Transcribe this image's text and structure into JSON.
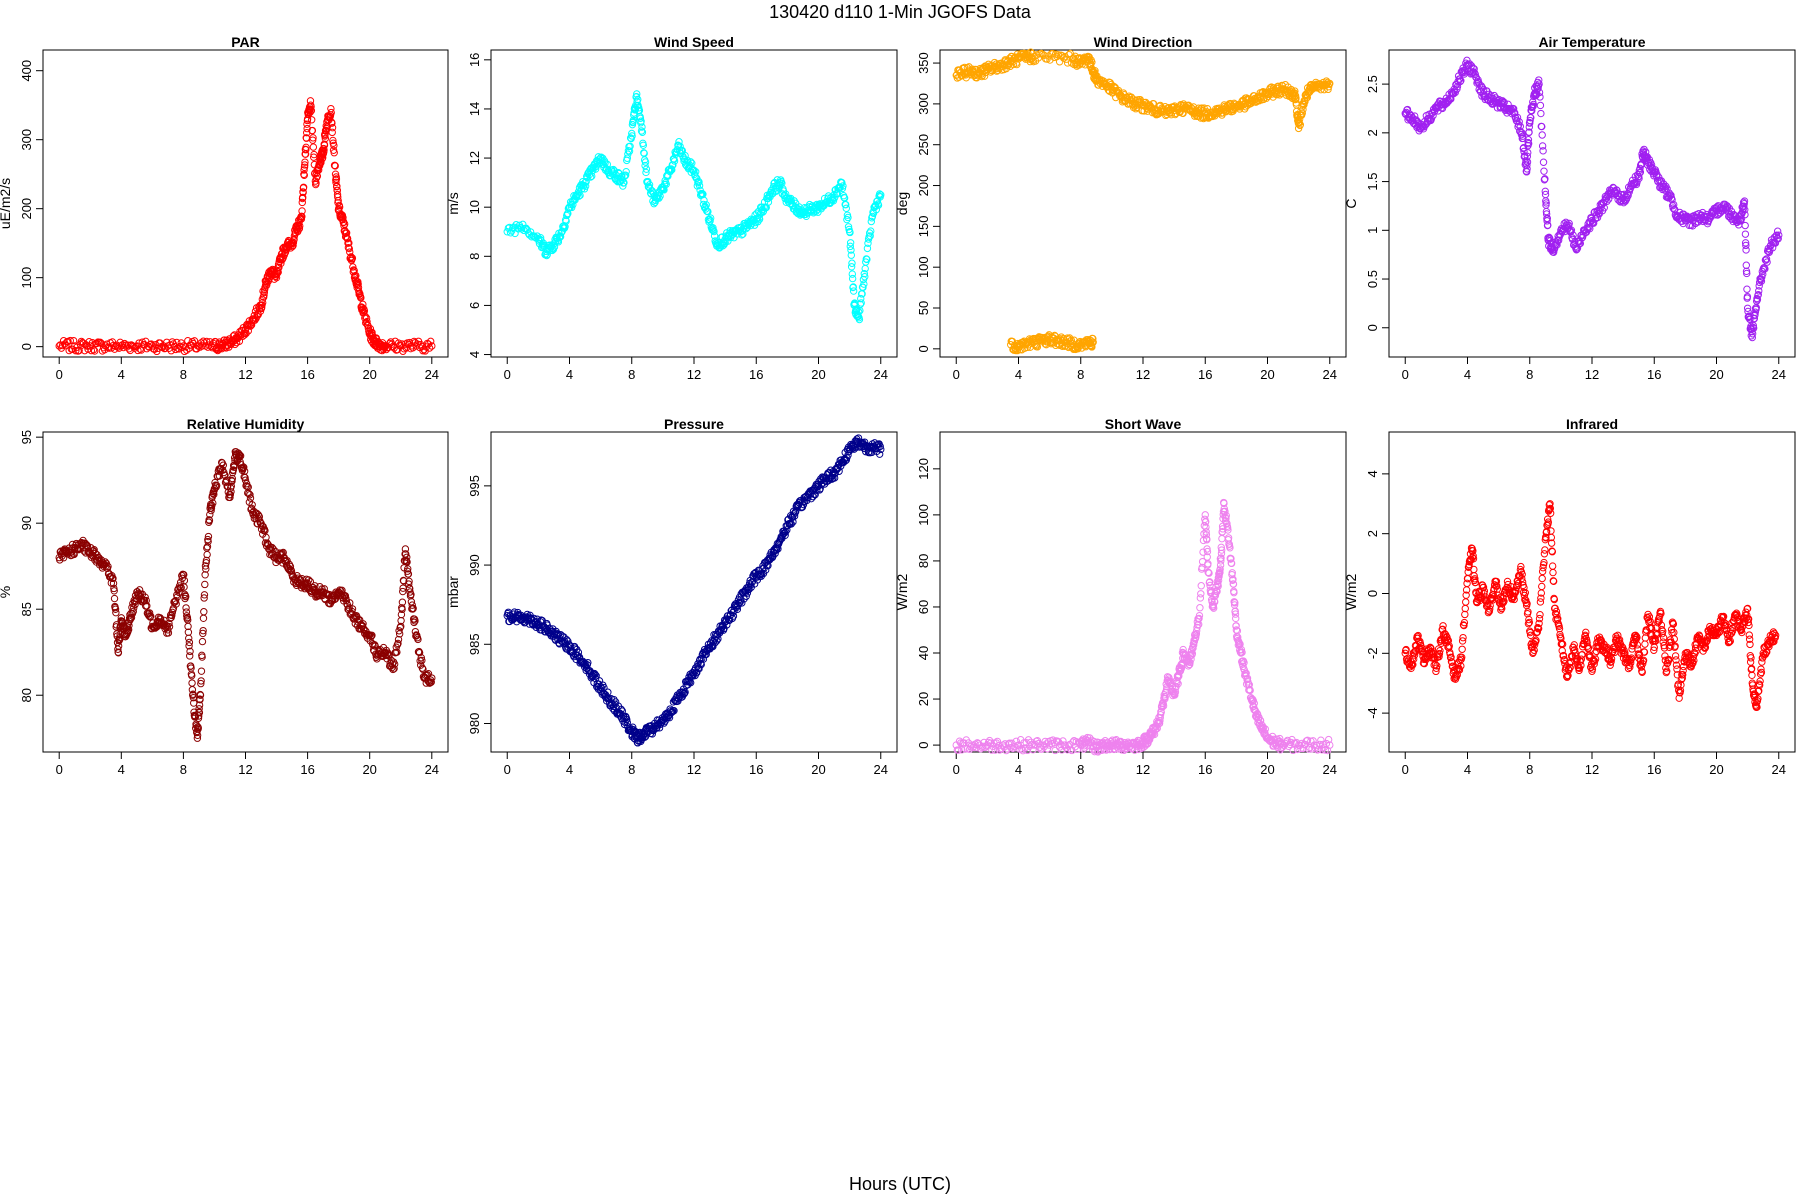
{
  "title": "130420   d110   1-Min  JGOFS Data",
  "xlabel": "Hours (UTC)",
  "chart_data": [
    {
      "type": "scatter",
      "title": "PAR",
      "xlabel": "",
      "ylabel": "uE/m2/s",
      "color": "#ff0000",
      "xlim": [
        0,
        24
      ],
      "ylim": [
        -15,
        430
      ],
      "xticks": [
        0,
        4,
        8,
        12,
        16,
        20,
        24
      ],
      "yticks": [
        0,
        100,
        200,
        300,
        400
      ],
      "x": [
        0,
        1,
        2,
        3,
        4,
        5,
        6,
        7,
        8,
        9,
        10,
        10.5,
        11,
        11.5,
        12,
        12.5,
        13,
        13.3,
        13.6,
        14,
        14.3,
        14.6,
        15,
        15.3,
        15.6,
        15.8,
        16,
        16.2,
        16.5,
        16.8,
        17,
        17.2,
        17.5,
        17.8,
        18,
        18.3,
        18.6,
        19,
        19.3,
        19.6,
        20,
        20.3,
        20.6,
        21,
        22,
        23,
        24
      ],
      "y": [
        1,
        1,
        1,
        1,
        1,
        1,
        1,
        1,
        1,
        1,
        1,
        2,
        6,
        12,
        25,
        40,
        60,
        90,
        110,
        100,
        130,
        145,
        150,
        170,
        185,
        260,
        330,
        350,
        240,
        270,
        280,
        320,
        345,
        250,
        200,
        180,
        150,
        110,
        80,
        50,
        20,
        8,
        3,
        1,
        1,
        1,
        1
      ]
    },
    {
      "type": "scatter",
      "title": "Wind Speed",
      "xlabel": "",
      "ylabel": "m/s",
      "color": "#00ffff",
      "xlim": [
        0,
        24
      ],
      "ylim": [
        3.9,
        16.4
      ],
      "xticks": [
        0,
        4,
        8,
        12,
        16,
        20,
        24
      ],
      "yticks": [
        4,
        6,
        8,
        10,
        12,
        14,
        16
      ],
      "x": [
        0,
        1,
        2,
        2.5,
        3,
        3.5,
        4,
        4.5,
        5,
        5.5,
        6,
        6.5,
        7,
        7.5,
        8,
        8.3,
        8.6,
        9,
        9.5,
        10,
        10.5,
        11,
        11.5,
        12,
        12.5,
        13,
        13.5,
        14,
        14.5,
        15,
        15.5,
        16,
        16.5,
        17,
        17.5,
        18,
        18.5,
        19,
        19.5,
        20,
        20.5,
        21,
        21.5,
        22,
        22.3,
        22.6,
        23,
        23.5,
        24
      ],
      "y": [
        9,
        9.3,
        8.7,
        8.2,
        8.5,
        9,
        10,
        10.5,
        11,
        11.5,
        12,
        11.5,
        11.3,
        11,
        13,
        14.5,
        13.5,
        11,
        10.2,
        10.8,
        11.5,
        12.5,
        11.8,
        11.5,
        10.5,
        9.5,
        8.5,
        8.7,
        8.9,
        9,
        9.3,
        9.5,
        10,
        10.7,
        11,
        10.3,
        10,
        9.8,
        9.9,
        10,
        10.2,
        10.5,
        11,
        9,
        6,
        5.5,
        7.5,
        9.8,
        10.5
      ]
    },
    {
      "type": "scatter",
      "title": "Wind Direction",
      "xlabel": "",
      "ylabel": "deg",
      "color": "#ffa500",
      "xlim": [
        0,
        24
      ],
      "ylim": [
        -10,
        366
      ],
      "xticks": [
        0,
        4,
        8,
        12,
        16,
        20,
        24
      ],
      "yticks": [
        0,
        50,
        100,
        150,
        200,
        250,
        300,
        350
      ],
      "x": [
        0,
        0.5,
        1,
        1.5,
        2,
        2.5,
        3,
        3.5,
        4,
        4.5,
        5,
        6.3,
        7.5,
        8,
        8.5,
        8.8,
        9,
        9.5,
        10,
        10.5,
        11,
        11.5,
        12,
        12.5,
        13,
        13.5,
        14,
        14.5,
        15,
        15.5,
        16,
        16.5,
        17,
        17.5,
        18,
        18.5,
        19,
        19.5,
        20,
        20.5,
        21,
        21.5,
        21.8,
        22,
        22.3,
        22.6,
        23,
        23.5,
        24,
        3.5,
        4,
        4.5,
        5,
        5.5,
        6,
        6.5,
        7,
        7.5,
        8,
        8.5,
        8.8
      ],
      "y": [
        335,
        338,
        340,
        337,
        342,
        345,
        348,
        352,
        355,
        357,
        358,
        357,
        355,
        350,
        357,
        340,
        330,
        325,
        318,
        310,
        305,
        300,
        298,
        295,
        292,
        290,
        292,
        295,
        293,
        290,
        288,
        290,
        292,
        295,
        297,
        300,
        303,
        308,
        312,
        316,
        318,
        315,
        310,
        270,
        300,
        315,
        320,
        322,
        325,
        5,
        3,
        6,
        8,
        10,
        12,
        10,
        8,
        6,
        5,
        7,
        8
      ]
    },
    {
      "type": "scatter",
      "title": "Air Temperature",
      "xlabel": "",
      "ylabel": "C",
      "color": "#a020f0",
      "xlim": [
        0,
        24
      ],
      "ylim": [
        -0.3,
        2.85
      ],
      "xticks": [
        0,
        4,
        8,
        12,
        16,
        20,
        24
      ],
      "yticks": [
        0,
        0.5,
        1,
        1.5,
        2,
        2.5
      ],
      "x": [
        0,
        0.5,
        1,
        1.5,
        2,
        2.5,
        3,
        3.5,
        4,
        4.5,
        5,
        5.5,
        6,
        6.5,
        7,
        7.5,
        7.8,
        8,
        8.3,
        8.6,
        9,
        9.2,
        9.5,
        10,
        10.5,
        11,
        11.5,
        12,
        12.5,
        13,
        13.5,
        14,
        14.5,
        15,
        15.3,
        15.6,
        16,
        16.5,
        17,
        17.5,
        18,
        18.5,
        19,
        19.5,
        20,
        20.5,
        21,
        21.5,
        21.8,
        22,
        22.3,
        22.6,
        23,
        23.5,
        24
      ],
      "y": [
        2.2,
        2.15,
        2.05,
        2.15,
        2.25,
        2.3,
        2.4,
        2.55,
        2.7,
        2.6,
        2.4,
        2.35,
        2.3,
        2.25,
        2.2,
        2.0,
        1.6,
        2.1,
        2.4,
        2.5,
        1.4,
        0.9,
        0.8,
        1.0,
        1.05,
        0.8,
        1.0,
        1.1,
        1.2,
        1.35,
        1.4,
        1.3,
        1.45,
        1.55,
        1.8,
        1.7,
        1.6,
        1.45,
        1.35,
        1.15,
        1.1,
        1.1,
        1.15,
        1.1,
        1.2,
        1.25,
        1.15,
        1.1,
        1.3,
        0.2,
        -0.1,
        0.3,
        0.6,
        0.85,
        0.95
      ]
    },
    {
      "type": "scatter",
      "title": "Relative Humidity",
      "xlabel": "",
      "ylabel": "%",
      "color": "#8b0000",
      "xlim": [
        0,
        24
      ],
      "ylim": [
        76.7,
        95.3
      ],
      "xticks": [
        0,
        4,
        8,
        12,
        16,
        20,
        24
      ],
      "yticks": [
        80,
        85,
        90,
        95
      ],
      "x": [
        0,
        0.5,
        1,
        1.5,
        2,
        2.5,
        3,
        3.5,
        3.8,
        4,
        4.3,
        4.6,
        5,
        5.5,
        6,
        6.5,
        7,
        7.5,
        8,
        8.3,
        8.6,
        8.9,
        9.1,
        9.4,
        9.7,
        10,
        10.5,
        11,
        11.3,
        11.6,
        12,
        12.5,
        13,
        13.5,
        14,
        14.5,
        15,
        15.5,
        16,
        16.5,
        17,
        17.5,
        18,
        18.5,
        19,
        19.5,
        20,
        20.5,
        21,
        21.5,
        22,
        22.3,
        22.6,
        23,
        23.5,
        24
      ],
      "y": [
        88,
        88.3,
        88.5,
        88.7,
        88.3,
        88,
        87.5,
        86.5,
        82.5,
        84.5,
        83.5,
        84.5,
        86,
        85.5,
        84,
        84.5,
        83.8,
        85.5,
        87,
        84,
        80,
        77.5,
        80,
        87,
        90.5,
        92,
        93.5,
        91.5,
        93.8,
        94,
        92.5,
        90.5,
        90,
        88.5,
        88,
        88,
        87,
        86.5,
        86.5,
        86,
        86,
        85.5,
        86,
        85.5,
        84.5,
        84,
        83.5,
        82.3,
        82.5,
        81.5,
        84,
        88.5,
        86,
        83.5,
        81,
        81
      ]
    },
    {
      "type": "scatter",
      "title": "Pressure",
      "xlabel": "",
      "ylabel": "mbar",
      "color": "#00008b",
      "xlim": [
        0,
        24
      ],
      "ylim": [
        978.2,
        998.4
      ],
      "xticks": [
        0,
        4,
        8,
        12,
        16,
        20,
        24
      ],
      "yticks": [
        980,
        985,
        990,
        995
      ],
      "x": [
        0,
        0.5,
        1,
        1.5,
        2,
        2.5,
        3,
        3.5,
        4,
        4.5,
        5,
        5.5,
        6,
        6.5,
        7,
        7.5,
        8,
        8.3,
        8.6,
        9,
        9.5,
        10,
        10.5,
        11,
        11.5,
        12,
        12.5,
        13,
        13.5,
        14,
        14.5,
        15,
        15.5,
        16,
        16.5,
        17,
        17.5,
        18,
        18.5,
        19,
        19.5,
        20,
        20.5,
        21,
        21.5,
        22,
        22.5,
        23,
        23.5,
        24
      ],
      "y": [
        986.8,
        986.7,
        986.7,
        986.6,
        986.3,
        986,
        985.6,
        985.2,
        984.9,
        984.3,
        983.8,
        983,
        982.3,
        981.6,
        981,
        980.3,
        979.5,
        979.1,
        979.1,
        979.5,
        979.8,
        980.2,
        980.8,
        981.6,
        982.4,
        983.2,
        984.1,
        984.8,
        985.6,
        986.4,
        987,
        987.8,
        988.6,
        989.3,
        989.8,
        990.6,
        991.5,
        992.5,
        993.3,
        994,
        994.5,
        995,
        995.5,
        995.8,
        996.5,
        997.3,
        997.8,
        997.5,
        997.4,
        997.3
      ]
    },
    {
      "type": "scatter",
      "title": "Short Wave",
      "xlabel": "",
      "ylabel": "W/m2",
      "color": "#ee82ee",
      "xlim": [
        0,
        24
      ],
      "ylim": [
        -3,
        136
      ],
      "xticks": [
        0,
        4,
        8,
        12,
        16,
        20,
        24
      ],
      "yticks": [
        0,
        20,
        40,
        60,
        80,
        100,
        120
      ],
      "x": [
        0,
        1,
        2,
        3,
        4,
        5,
        6,
        7,
        8,
        8.5,
        9,
        9.5,
        10,
        10.5,
        11,
        11.5,
        12,
        12.3,
        12.6,
        13,
        13.3,
        13.6,
        14,
        14.3,
        14.6,
        15,
        15.3,
        15.6,
        16,
        16.2,
        16.5,
        16.8,
        17,
        17.2,
        17.5,
        17.8,
        18,
        18.3,
        18.6,
        19,
        19.3,
        19.6,
        20,
        20.5,
        21,
        22,
        23,
        24
      ],
      "y": [
        0,
        0,
        0,
        0,
        0,
        0,
        0,
        0,
        0,
        1,
        -1,
        0,
        0,
        0,
        0,
        0,
        1,
        3,
        5,
        10,
        18,
        28,
        22,
        30,
        40,
        35,
        45,
        55,
        100,
        75,
        60,
        70,
        80,
        105,
        90,
        70,
        50,
        40,
        30,
        20,
        12,
        8,
        3,
        1,
        0,
        0,
        0,
        0
      ]
    },
    {
      "type": "scatter",
      "title": "Infrared",
      "xlabel": "",
      "ylabel": "W/m2",
      "color": "#ff0000",
      "xlim": [
        0,
        24
      ],
      "ylim": [
        -5.3,
        5.4
      ],
      "xticks": [
        0,
        4,
        8,
        12,
        16,
        20,
        24
      ],
      "yticks": [
        -4,
        -2,
        0,
        2,
        4
      ],
      "x": [
        0,
        0.4,
        0.8,
        1.2,
        1.6,
        2,
        2.4,
        2.8,
        3.2,
        3.6,
        4,
        4.3,
        4.6,
        5,
        5.4,
        5.8,
        6.2,
        6.6,
        7,
        7.4,
        7.8,
        8.2,
        8.6,
        9,
        9.3,
        9.6,
        10,
        10.4,
        10.8,
        11.2,
        11.6,
        12,
        12.4,
        12.8,
        13.2,
        13.6,
        14,
        14.4,
        14.8,
        15.2,
        15.6,
        16,
        16.4,
        16.8,
        17.2,
        17.6,
        18,
        18.4,
        18.8,
        19.2,
        19.6,
        20,
        20.4,
        20.8,
        21.2,
        21.6,
        22,
        22.3,
        22.6,
        23,
        23.4,
        23.8
      ],
      "y": [
        -2,
        -2.4,
        -1.5,
        -2.2,
        -1.8,
        -2.5,
        -1.2,
        -1.8,
        -2.8,
        -2.2,
        0.5,
        1.5,
        -0.3,
        0.2,
        -0.6,
        0.4,
        -0.5,
        0.3,
        -0.2,
        0.8,
        -0.4,
        -2,
        -1,
        1.8,
        3,
        -0.5,
        -1.5,
        -2.8,
        -1.8,
        -2.5,
        -1.3,
        -2.6,
        -1.6,
        -1.8,
        -2.3,
        -1.5,
        -2,
        -2.4,
        -1.4,
        -2.6,
        -0.7,
        -1.8,
        -0.6,
        -2.6,
        -1,
        -3.5,
        -2,
        -2.4,
        -1.5,
        -1.8,
        -1.2,
        -1.4,
        -0.8,
        -1.6,
        -0.7,
        -1.2,
        -0.5,
        -3,
        -3.8,
        -2,
        -1.6,
        -1.4
      ]
    }
  ]
}
